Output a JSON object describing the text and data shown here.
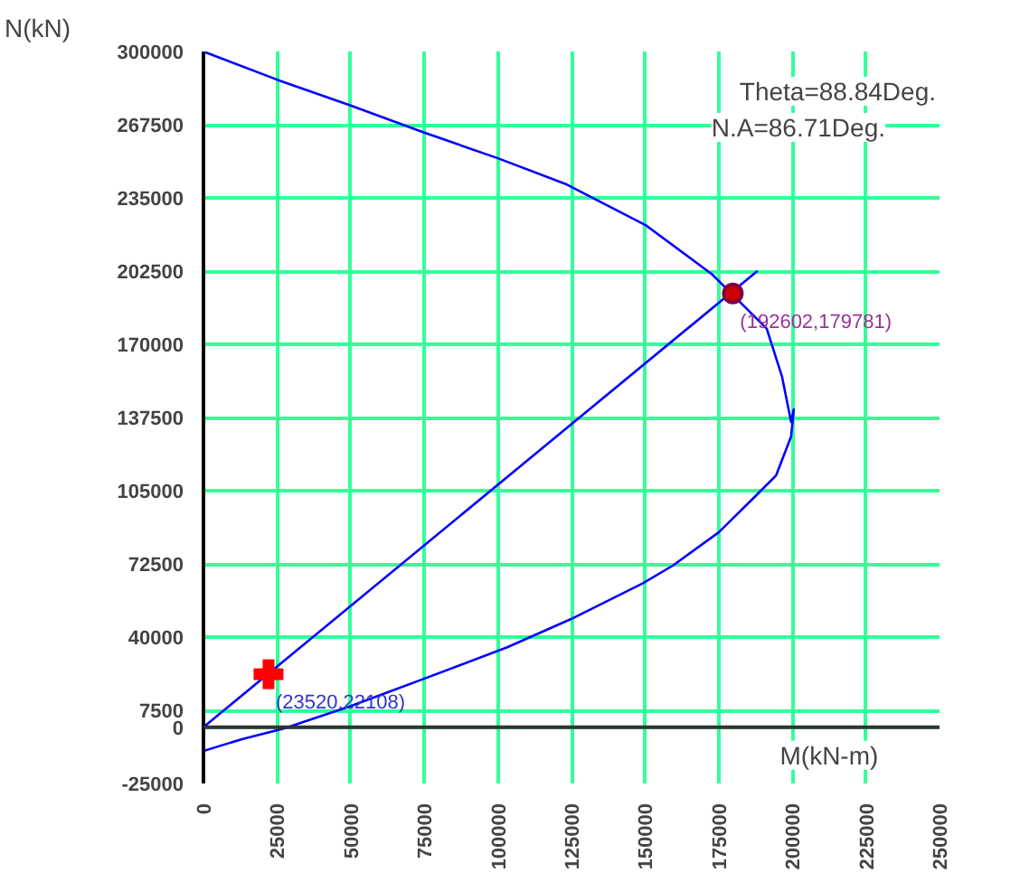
{
  "chart_data": {
    "type": "line",
    "xlabel": "M(kN-m)",
    "ylabel": "N(kN)",
    "annotations": [
      "Theta=88.84Deg.",
      "N.A=86.71Deg.",
      {
        "text": "(192602,179781)",
        "x": 179781,
        "y": 192602
      },
      {
        "text": "(23520,22108)",
        "x": 22108,
        "y": 23520
      }
    ],
    "xlim": [
      0,
      250000
    ],
    "ylim": [
      -25000,
      300000
    ],
    "xticks": [
      0,
      25000,
      50000,
      75000,
      100000,
      125000,
      150000,
      175000,
      200000,
      225000,
      250000
    ],
    "yticks": [
      -25000,
      0,
      7500,
      40000,
      72500,
      105000,
      137500,
      170000,
      202500,
      235000,
      267500,
      300000
    ],
    "grid": true,
    "series": [
      {
        "color": "#0000ff",
        "x": [
          0,
          25000,
          50000,
          75000,
          100000,
          123500,
          150300,
          172800,
          191300,
          196500,
          199600,
          200500,
          199600,
          194500,
          187400,
          175000,
          159600,
          149300,
          124700,
          103200,
          74500,
          49900,
          27500,
          13100,
          0
        ],
        "values": [
          300000,
          287500,
          276000,
          264000,
          252600,
          240900,
          222800,
          201000,
          177000,
          155700,
          135500,
          141100,
          129100,
          111800,
          102500,
          86500,
          71900,
          63900,
          47900,
          35500,
          21300,
          9300,
          -500,
          -5300,
          -10600
        ]
      },
      {
        "color": "#0000ff",
        "x": [
          0,
          188200
        ],
        "values": [
          0,
          202600
        ]
      },
      {
        "type": "scatter",
        "marker": "circle",
        "color": "#cc0000",
        "x": [
          179800
        ],
        "values": [
          192600
        ]
      },
      {
        "type": "scatter",
        "marker": "cross",
        "color": "#ff0000",
        "x": [
          22100
        ],
        "values": [
          23500
        ]
      }
    ]
  }
}
